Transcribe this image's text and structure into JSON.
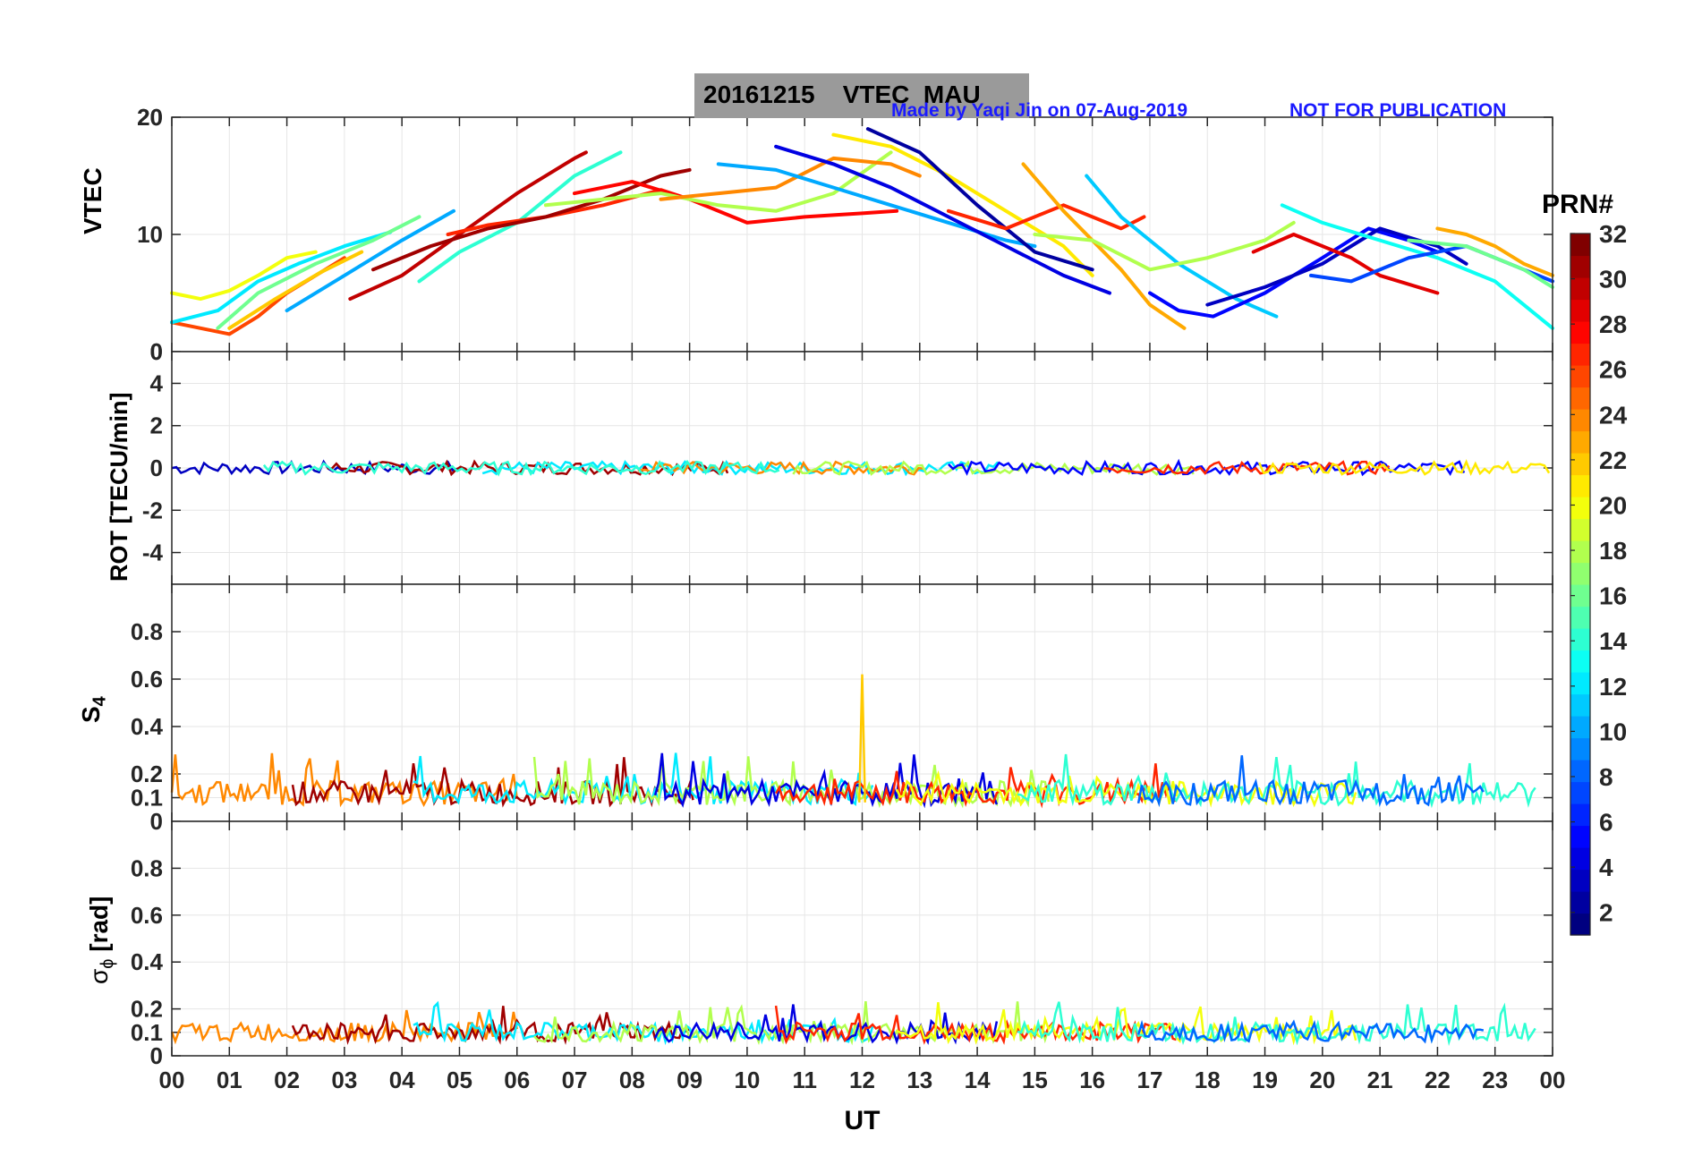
{
  "header": {
    "title": "20161215    VTEC  MAU",
    "credit": "Made by Yaqi Jin on 07-Aug-2019",
    "notice": "NOT FOR PUBLICATION"
  },
  "chart_data": [
    {
      "type": "line",
      "panel": "vtec",
      "ylabel": "VTEC",
      "ylim": [
        0,
        20
      ],
      "yticks": [
        0,
        10,
        20
      ],
      "xlim": [
        0,
        24
      ],
      "series": [
        {
          "prn": 20,
          "x": [
            0.0,
            0.5,
            1.0,
            1.5,
            2.0,
            2.5
          ],
          "y": [
            5.0,
            4.5,
            5.2,
            6.5,
            8.0,
            8.5
          ]
        },
        {
          "prn": 26,
          "x": [
            0.0,
            0.5,
            1.0,
            1.5,
            2.0,
            2.5,
            3.0
          ],
          "y": [
            2.5,
            2.0,
            1.5,
            3.0,
            5.0,
            6.5,
            8.0
          ]
        },
        {
          "prn": 12,
          "x": [
            0.0,
            0.8,
            1.5,
            2.2,
            3.0,
            3.8
          ],
          "y": [
            2.5,
            3.5,
            6.0,
            7.5,
            9.0,
            10.2
          ]
        },
        {
          "prn": 16,
          "x": [
            0.8,
            1.5,
            2.5,
            3.5,
            4.3
          ],
          "y": [
            2.0,
            5.0,
            7.5,
            9.5,
            11.5
          ]
        },
        {
          "prn": 22,
          "x": [
            1.0,
            1.8,
            2.6,
            3.3
          ],
          "y": [
            2.0,
            4.5,
            6.8,
            8.5
          ]
        },
        {
          "prn": 10,
          "x": [
            2.0,
            3.0,
            4.0,
            4.9
          ],
          "y": [
            3.5,
            6.5,
            9.5,
            12.0
          ]
        },
        {
          "prn": 30,
          "x": [
            3.1,
            4.0,
            5.0,
            6.0,
            7.0,
            7.2
          ],
          "y": [
            4.5,
            6.5,
            10.0,
            13.5,
            16.5,
            17.0
          ]
        },
        {
          "prn": 14,
          "x": [
            4.3,
            5.0,
            6.0,
            7.0,
            7.8
          ],
          "y": [
            6.0,
            8.5,
            11.0,
            15.0,
            17.0
          ]
        },
        {
          "prn": 27,
          "x": [
            4.8,
            5.5,
            6.5,
            7.5,
            8.5,
            9.0
          ],
          "y": [
            10.0,
            10.8,
            11.5,
            12.5,
            13.8,
            13.0
          ]
        },
        {
          "prn": 31,
          "x": [
            3.5,
            4.5,
            5.5,
            6.5,
            7.5,
            8.5,
            9.0
          ],
          "y": [
            7.0,
            9.0,
            10.5,
            11.5,
            13.0,
            15.0,
            15.5
          ]
        },
        {
          "prn": 28,
          "x": [
            7.0,
            8.0,
            9.0,
            10.0,
            11.0,
            12.0,
            12.6
          ],
          "y": [
            13.5,
            14.5,
            13.0,
            11.0,
            11.5,
            11.8,
            12.0
          ]
        },
        {
          "prn": 18,
          "x": [
            6.5,
            7.5,
            8.5,
            9.5,
            10.5,
            11.5,
            12.5
          ],
          "y": [
            12.5,
            13.0,
            13.5,
            12.5,
            12.0,
            13.5,
            17.0
          ]
        },
        {
          "prn": 24,
          "x": [
            8.5,
            9.5,
            10.5,
            11.5,
            12.5,
            13.0
          ],
          "y": [
            13.0,
            13.5,
            14.0,
            16.5,
            16.0,
            15.0
          ]
        },
        {
          "prn": 10,
          "x": [
            9.5,
            10.5,
            11.5,
            12.5,
            13.5,
            14.5,
            15.0
          ],
          "y": [
            16.0,
            15.5,
            14.0,
            12.5,
            11.0,
            9.5,
            9.0
          ]
        },
        {
          "prn": 4,
          "x": [
            10.5,
            11.5,
            12.5,
            13.5,
            14.5,
            15.5,
            16.3
          ],
          "y": [
            17.5,
            16.0,
            14.0,
            11.5,
            9.0,
            6.5,
            5.0
          ]
        },
        {
          "prn": 21,
          "x": [
            11.5,
            12.5,
            13.5,
            14.5,
            15.5,
            16.0
          ],
          "y": [
            18.5,
            17.5,
            15.0,
            12.0,
            9.0,
            6.5
          ]
        },
        {
          "prn": 2,
          "x": [
            12.1,
            13.0,
            14.0,
            15.0,
            16.0
          ],
          "y": [
            19.0,
            17.0,
            12.5,
            8.5,
            7.0
          ]
        },
        {
          "prn": 27,
          "x": [
            13.5,
            14.5,
            15.5,
            16.5,
            16.9
          ],
          "y": [
            12.0,
            10.5,
            12.5,
            10.5,
            11.5
          ]
        },
        {
          "prn": 23,
          "x": [
            14.8,
            15.5,
            16.5,
            17.0,
            17.6
          ],
          "y": [
            16.0,
            12.0,
            7.0,
            4.0,
            2.0
          ]
        },
        {
          "prn": 11,
          "x": [
            15.9,
            16.5,
            17.5,
            18.5,
            19.2
          ],
          "y": [
            15.0,
            11.5,
            7.5,
            4.5,
            3.0
          ]
        },
        {
          "prn": 18,
          "x": [
            15.0,
            16.0,
            17.0,
            18.0,
            19.0,
            19.5
          ],
          "y": [
            10.0,
            9.5,
            7.0,
            8.0,
            9.5,
            11.0
          ]
        },
        {
          "prn": 5,
          "x": [
            17.0,
            17.5,
            18.1,
            19.0,
            20.0,
            20.8,
            21.5,
            22.0
          ],
          "y": [
            5.0,
            3.5,
            3.0,
            5.0,
            8.0,
            10.5,
            9.5,
            8.5
          ]
        },
        {
          "prn": 3,
          "x": [
            18.0,
            19.0,
            20.0,
            21.0,
            22.0,
            22.5
          ],
          "y": [
            4.0,
            5.5,
            7.5,
            10.5,
            9.0,
            7.5
          ]
        },
        {
          "prn": 29,
          "x": [
            18.8,
            19.5,
            20.5,
            21.0,
            22.0
          ],
          "y": [
            8.5,
            10.0,
            8.0,
            6.5,
            5.0
          ]
        },
        {
          "prn": 13,
          "x": [
            19.3,
            20.0,
            21.0,
            22.0,
            23.0,
            24.0
          ],
          "y": [
            12.5,
            11.0,
            9.5,
            8.0,
            6.0,
            2.0
          ]
        },
        {
          "prn": 7,
          "x": [
            19.8,
            20.5,
            21.5,
            22.5,
            23.5,
            24.0
          ],
          "y": [
            6.5,
            6.0,
            8.0,
            9.0,
            7.0,
            6.0
          ]
        },
        {
          "prn": 23,
          "x": [
            22.0,
            22.5,
            23.0,
            23.5,
            24.0
          ],
          "y": [
            10.5,
            10.0,
            9.0,
            7.5,
            6.5
          ]
        },
        {
          "prn": 16,
          "x": [
            21.5,
            22.5,
            23.5,
            24.0
          ],
          "y": [
            9.5,
            9.0,
            7.0,
            5.5
          ]
        }
      ]
    },
    {
      "type": "line",
      "panel": "rot",
      "ylabel": "ROT [TECU/min]",
      "ylim": [
        -5.5,
        5.5
      ],
      "yticks": [
        -4,
        -2,
        0,
        2,
        4
      ]
    },
    {
      "type": "line",
      "panel": "s4",
      "ylabel_main": "S",
      "ylabel_sub": "4",
      "ylim": [
        0,
        1
      ],
      "yticks": [
        0,
        0.1,
        0.2,
        0.4,
        0.6,
        0.8
      ],
      "ytick_labels": [
        "0",
        "0.1",
        "0.2",
        "0.4",
        "0.6",
        "0.8"
      ],
      "annotation": "spike to 0.62 near 12 UT"
    },
    {
      "type": "line",
      "panel": "sigma_phi",
      "ylabel_main": "σ",
      "ylabel_sub": "ϕ",
      "ylabel_unit": "[rad]",
      "ylim": [
        0,
        1
      ],
      "yticks": [
        0,
        0.1,
        0.2,
        0.4,
        0.6,
        0.8
      ],
      "ytick_labels": [
        "0",
        "0.1",
        "0.2",
        "0.4",
        "0.6",
        "0.8"
      ],
      "xlabel": "UT",
      "xtick_labels": [
        "00",
        "01",
        "02",
        "03",
        "04",
        "05",
        "06",
        "07",
        "08",
        "09",
        "10",
        "11",
        "12",
        "13",
        "14",
        "15",
        "16",
        "17",
        "18",
        "19",
        "20",
        "21",
        "22",
        "23",
        "00"
      ]
    }
  ],
  "colorbar": {
    "title": "PRN#",
    "range": [
      1,
      32
    ],
    "tick_labels": [
      "2",
      "4",
      "6",
      "8",
      "10",
      "12",
      "14",
      "16",
      "18",
      "20",
      "22",
      "24",
      "26",
      "28",
      "30",
      "32"
    ]
  },
  "colors": {
    "title_box": "#9a9a9a",
    "credit_text": "#1a1aff",
    "grid": "#e6e6e6"
  }
}
